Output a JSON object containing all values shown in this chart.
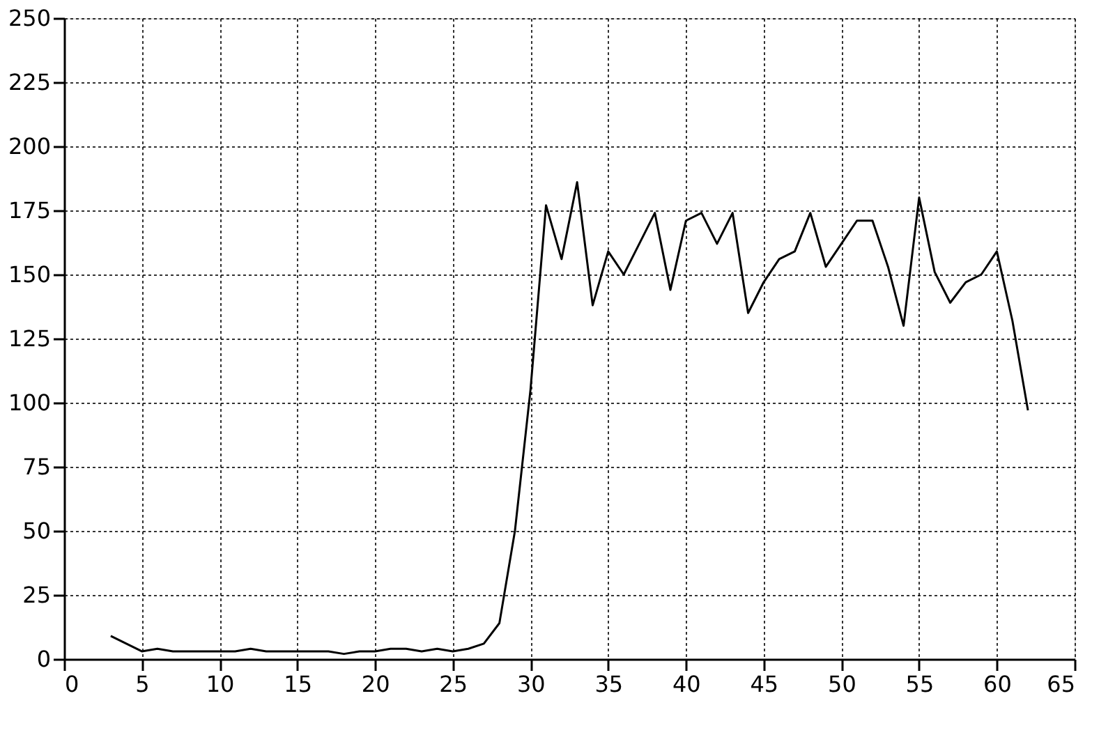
{
  "chart_data": {
    "type": "line",
    "x": [
      3,
      4,
      5,
      6,
      7,
      8,
      9,
      10,
      11,
      12,
      13,
      14,
      15,
      16,
      17,
      18,
      19,
      20,
      21,
      22,
      23,
      24,
      25,
      26,
      27,
      28,
      29,
      30,
      31,
      32,
      33,
      34,
      35,
      36,
      37,
      38,
      39,
      40,
      41,
      42,
      43,
      44,
      45,
      46,
      47,
      48,
      49,
      50,
      51,
      52,
      53,
      54,
      55,
      56,
      57,
      58,
      59,
      60,
      61,
      62
    ],
    "series": [
      {
        "color": "#000000",
        "values": [
          9,
          6,
          3,
          4,
          3,
          3,
          3,
          3,
          3,
          4,
          3,
          3,
          3,
          3,
          3,
          2,
          3,
          3,
          4,
          4,
          3,
          4,
          3,
          4,
          6,
          14,
          50,
          105,
          177,
          156,
          186,
          138,
          159,
          150,
          162,
          174,
          144,
          171,
          174,
          162,
          174,
          135,
          147,
          156,
          159,
          174,
          153,
          162,
          171,
          171,
          153,
          130,
          180,
          151,
          139,
          147,
          150,
          159,
          132,
          97
        ]
      }
    ],
    "xlim": [
      0,
      65
    ],
    "xticks": [
      0,
      5,
      10,
      15,
      20,
      25,
      30,
      35,
      40,
      45,
      50,
      55,
      60,
      65
    ],
    "ylim": [
      0,
      250
    ],
    "yticks": [
      0,
      25,
      50,
      75,
      100,
      125,
      150,
      175,
      200,
      225,
      250
    ],
    "grid": true,
    "marker": "none",
    "line_style": "solid"
  }
}
